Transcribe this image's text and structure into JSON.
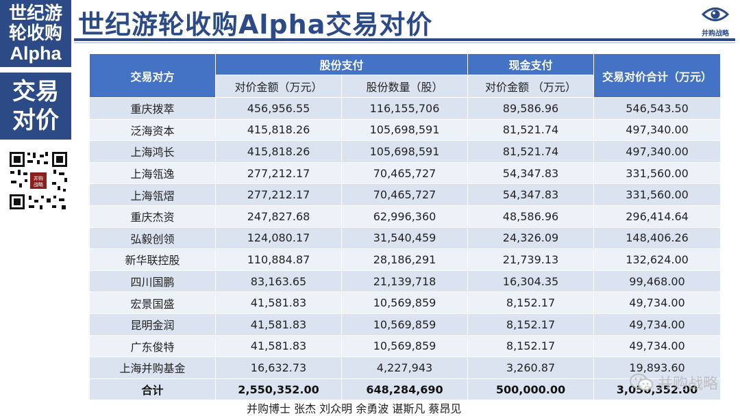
{
  "sidebar": {
    "top_line1": "世纪游",
    "top_line2": "轮收购",
    "top_line3": "Alpha",
    "mid_line1": "交易",
    "mid_line2": "对价",
    "qr_badge": "并购战略"
  },
  "title": "世纪游轮收购Alpha交易对价",
  "logo_text": "并购战略",
  "table": {
    "corner_header": "交易对方",
    "group_share": "股份支付",
    "group_cash": "现金支付",
    "total_header": "交易对价合计（万元）",
    "sub_share_amount": "对价金额（万元）",
    "sub_share_qty": "股份数量（股）",
    "sub_cash_amount": "对价金额 （万元）",
    "rows": [
      {
        "name": "重庆拨萃",
        "share_amount": "456,956.55",
        "share_qty": "116,155,706",
        "cash": "89,586.96",
        "total": "546,543.50"
      },
      {
        "name": "泛海资本",
        "share_amount": "415,818.26",
        "share_qty": "105,698,591",
        "cash": "81,521.74",
        "total": "497,340.00"
      },
      {
        "name": "上海鸿长",
        "share_amount": "415,818.26",
        "share_qty": "105,698,591",
        "cash": "81,521.74",
        "total": "497,340.00"
      },
      {
        "name": "上海瓴逸",
        "share_amount": "277,212.17",
        "share_qty": "70,465,727",
        "cash": "54,347.83",
        "total": "331,560.00"
      },
      {
        "name": "上海瓴熠",
        "share_amount": "277,212.17",
        "share_qty": "70,465,727",
        "cash": "54,347.83",
        "total": "331,560.00"
      },
      {
        "name": "重庆杰资",
        "share_amount": "247,827.68",
        "share_qty": "62,996,360",
        "cash": "48,586.96",
        "total": "296,414.64"
      },
      {
        "name": "弘毅创领",
        "share_amount": "124,080.17",
        "share_qty": "31,540,459",
        "cash": "24,326.09",
        "total": "148,406.26"
      },
      {
        "name": "新华联控股",
        "share_amount": "110,884.87",
        "share_qty": "28,186,291",
        "cash": "21,739.13",
        "total": "132,624.00"
      },
      {
        "name": "四川国鹏",
        "share_amount": "83,163.65",
        "share_qty": "21,139,718",
        "cash": "16,304.35",
        "total": "99,468.00"
      },
      {
        "name": "宏景国盛",
        "share_amount": "41,581.83",
        "share_qty": "10,569,859",
        "cash": "8,152.17",
        "total": "49,734.00"
      },
      {
        "name": "昆明金润",
        "share_amount": "41,581.83",
        "share_qty": "10,569,859",
        "cash": "8,152.17",
        "total": "49,734.00"
      },
      {
        "name": "广东俊特",
        "share_amount": "41,581.83",
        "share_qty": "10,569,859",
        "cash": "8,152.17",
        "total": "49,734.00"
      },
      {
        "name": "上海并购基金",
        "share_amount": "16,632.73",
        "share_qty": "4,227,943",
        "cash": "3,260.87",
        "total": "19,893.60"
      }
    ],
    "sum": {
      "name": "合计",
      "share_amount": "2,550,352.00",
      "share_qty": "648,284,690",
      "cash": "500,000.00",
      "total": "3,050,352.00"
    }
  },
  "footer": "并购博士 张杰 刘众明 余勇波 谌斯凡 蔡昂见",
  "watermark": "并购战略",
  "colors": {
    "brand": "#2b4a86",
    "header": "#4472c4",
    "row_light": "#dbe3f1",
    "row_lighter": "#edf1f8"
  },
  "icons": {
    "logo": "eye-icon",
    "watermark": "wechat-icon",
    "qr": "qr-code-icon"
  }
}
